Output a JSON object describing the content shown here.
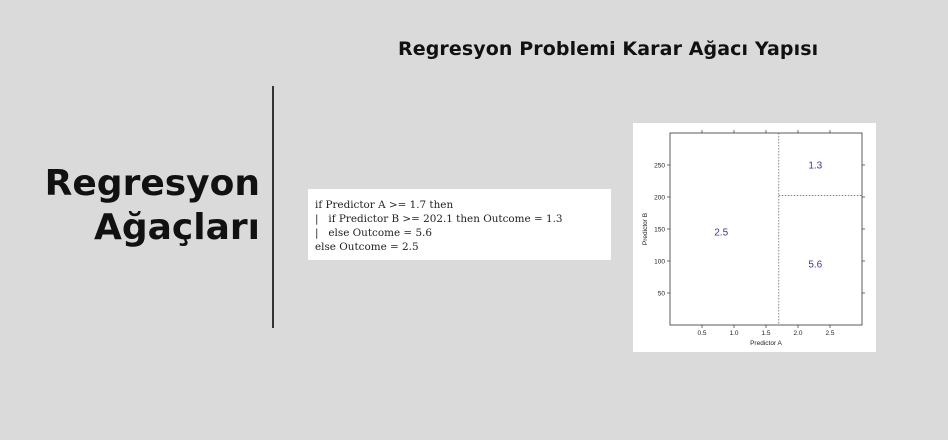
{
  "slide": {
    "title": "Regresyon Problemi Karar Ağacı Yapısı",
    "section_title_line1": "Regresyon",
    "section_title_line2": "Ağaçları"
  },
  "code": {
    "lines": [
      "if Predictor A >= 1.7 then",
      "|   if Predictor B >= 202.1 then Outcome = 1.3",
      "|   else Outcome = 5.6",
      "else Outcome = 2.5"
    ]
  },
  "chart_data": {
    "type": "partition",
    "xlabel": "Predictor A",
    "ylabel": "Predictor B",
    "xlim": [
      0,
      3
    ],
    "ylim": [
      0,
      300
    ],
    "x_ticks": [
      0.5,
      1.0,
      1.5,
      2.0,
      2.5
    ],
    "x_tick_labels": [
      "0.5",
      "1.0",
      "1.5",
      "2.0",
      "2.5"
    ],
    "y_ticks": [
      50,
      100,
      150,
      200,
      250
    ],
    "y_tick_labels": [
      "50",
      "100",
      "150",
      "200",
      "250"
    ],
    "splits": [
      {
        "axis": "x",
        "value": 1.7
      },
      {
        "axis": "y",
        "value": 202.1,
        "x_from": 1.7,
        "x_to": 3
      }
    ],
    "regions": [
      {
        "label": "2.5",
        "x": 0.8,
        "y": 145
      },
      {
        "label": "1.3",
        "x": 2.27,
        "y": 250
      },
      {
        "label": "5.6",
        "x": 2.27,
        "y": 95
      }
    ],
    "colors": {
      "region_label": "#3a3aa0",
      "axis": "#333333",
      "split": "#555555"
    }
  }
}
